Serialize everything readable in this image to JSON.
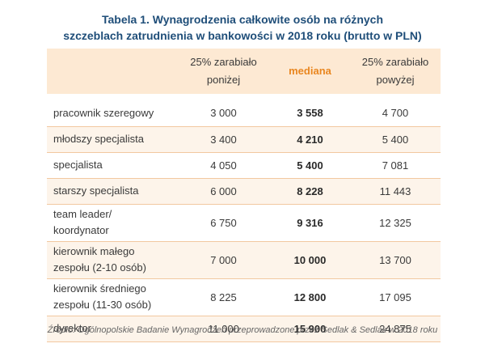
{
  "title": {
    "line1": "Tabela 1. Wynagrodzenia całkowite osób na różnych",
    "line2": "szczeblach zatrudnienia w bankowości w 2018 roku (brutto w PLN)"
  },
  "table": {
    "headers": {
      "low_line1": "25% zarabiało",
      "low_line2": "poniżej",
      "median": "mediana",
      "high_line1": "25% zarabiało",
      "high_line2": "powyżej"
    },
    "rows": [
      {
        "label_line1": "pracownik szeregowy",
        "label_line2": "",
        "low": "3 000",
        "median": "3 558",
        "high": "4 700"
      },
      {
        "label_line1": "młodszy specjalista",
        "label_line2": "",
        "low": "3 400",
        "median": "4 210",
        "high": "5 400"
      },
      {
        "label_line1": "specjalista",
        "label_line2": "",
        "low": "4 050",
        "median": "5 400",
        "high": "7 081"
      },
      {
        "label_line1": "starszy specjalista",
        "label_line2": "",
        "low": "6 000",
        "median": "8 228",
        "high": "11 443"
      },
      {
        "label_line1": "team leader/",
        "label_line2": "koordynator",
        "low": "6 750",
        "median": "9 316",
        "high": "12 325"
      },
      {
        "label_line1": "kierownik małego",
        "label_line2": "zespołu (2-10 osób)",
        "low": "7 000",
        "median": "10 000",
        "high": "13 700"
      },
      {
        "label_line1": "kierownik średniego",
        "label_line2": "zespołu (11-30 osób)",
        "low": "8 225",
        "median": "12 800",
        "high": "17 095"
      },
      {
        "label_line1": "dyrektor",
        "label_line2": "",
        "low": "11 000",
        "median": "15 900",
        "high": "24 875"
      }
    ]
  },
  "source": "Źródło: Ogólnopolskie Badanie Wynagrodzeń przeprowadzone przez Sedlak & Sedlak w 2018 roku",
  "colors": {
    "title": "#1f4e79",
    "median_header": "#e9861f",
    "header_bg": "#fde9d3",
    "row_band_bg": "#fdf4ea",
    "row_border": "#f2c8a0"
  }
}
